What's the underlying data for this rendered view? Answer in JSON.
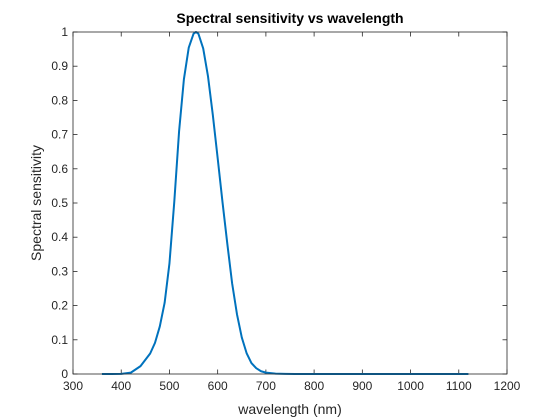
{
  "chart_data": {
    "type": "line",
    "title": "Spectral sensitivity vs wavelength",
    "xlabel": "wavelength (nm)",
    "ylabel": "Spectral sensitivity",
    "xlim": [
      300,
      1200
    ],
    "ylim": [
      0,
      1
    ],
    "x_ticks": [
      "300",
      "400",
      "500",
      "600",
      "700",
      "800",
      "900",
      "1000",
      "1100",
      "1200"
    ],
    "y_ticks": [
      "0",
      "0.1",
      "0.2",
      "0.3",
      "0.4",
      "0.5",
      "0.6",
      "0.7",
      "0.8",
      "0.9",
      "1"
    ],
    "grid": false,
    "line_color": "#0072BD",
    "series": [
      {
        "x": [
          360,
          380,
          400,
          420,
          440,
          460,
          470,
          480,
          490,
          500,
          510,
          520,
          530,
          540,
          550,
          555,
          560,
          570,
          580,
          590,
          600,
          610,
          620,
          630,
          640,
          650,
          660,
          670,
          680,
          690,
          700,
          720,
          740,
          760,
          780,
          800,
          850,
          900,
          950,
          1000,
          1050,
          1100,
          1120
        ],
        "y": [
          0.0,
          0.0,
          0.0004,
          0.004,
          0.023,
          0.06,
          0.091,
          0.139,
          0.208,
          0.323,
          0.503,
          0.71,
          0.862,
          0.954,
          0.995,
          1.0,
          0.995,
          0.952,
          0.87,
          0.757,
          0.631,
          0.503,
          0.381,
          0.265,
          0.175,
          0.107,
          0.061,
          0.032,
          0.017,
          0.008,
          0.004,
          0.001,
          0.0003,
          0.0001,
          0.0,
          0.0,
          0.0,
          0.0,
          0.0,
          0.0,
          0.0,
          0.0,
          0.0
        ]
      }
    ]
  }
}
